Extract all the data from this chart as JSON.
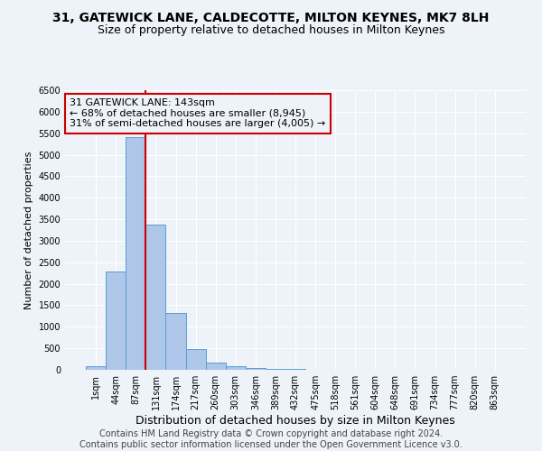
{
  "title_line1": "31, GATEWICK LANE, CALDECOTTE, MILTON KEYNES, MK7 8LH",
  "title_line2": "Size of property relative to detached houses in Milton Keynes",
  "xlabel": "Distribution of detached houses by size in Milton Keynes",
  "ylabel": "Number of detached properties",
  "footnote": "Contains HM Land Registry data © Crown copyright and database right 2024.\nContains public sector information licensed under the Open Government Licence v3.0.",
  "bar_labels": [
    "1sqm",
    "44sqm",
    "87sqm",
    "131sqm",
    "174sqm",
    "217sqm",
    "260sqm",
    "303sqm",
    "346sqm",
    "389sqm",
    "432sqm",
    "475sqm",
    "518sqm",
    "561sqm",
    "604sqm",
    "648sqm",
    "691sqm",
    "734sqm",
    "777sqm",
    "820sqm",
    "863sqm"
  ],
  "bar_values": [
    80,
    2280,
    5420,
    3380,
    1320,
    480,
    165,
    80,
    50,
    30,
    15,
    8,
    5,
    3,
    2,
    2,
    1,
    1,
    1,
    1,
    1
  ],
  "bar_color": "#aec6e8",
  "bar_edge_color": "#5a9fd4",
  "ylim": [
    0,
    6500
  ],
  "yticks": [
    0,
    500,
    1000,
    1500,
    2000,
    2500,
    3000,
    3500,
    4000,
    4500,
    5000,
    5500,
    6000,
    6500
  ],
  "annotation_box_text": "31 GATEWICK LANE: 143sqm\n← 68% of detached houses are smaller (8,945)\n31% of semi-detached houses are larger (4,005) →",
  "vline_x": 2.5,
  "bg_color": "#eef2f9",
  "grid_color": "#ffffff",
  "box_color": "#cc0000",
  "title1_fontsize": 10,
  "title2_fontsize": 9,
  "xlabel_fontsize": 9,
  "ylabel_fontsize": 8,
  "tick_fontsize": 7,
  "annotation_fontsize": 8,
  "footnote_fontsize": 7
}
